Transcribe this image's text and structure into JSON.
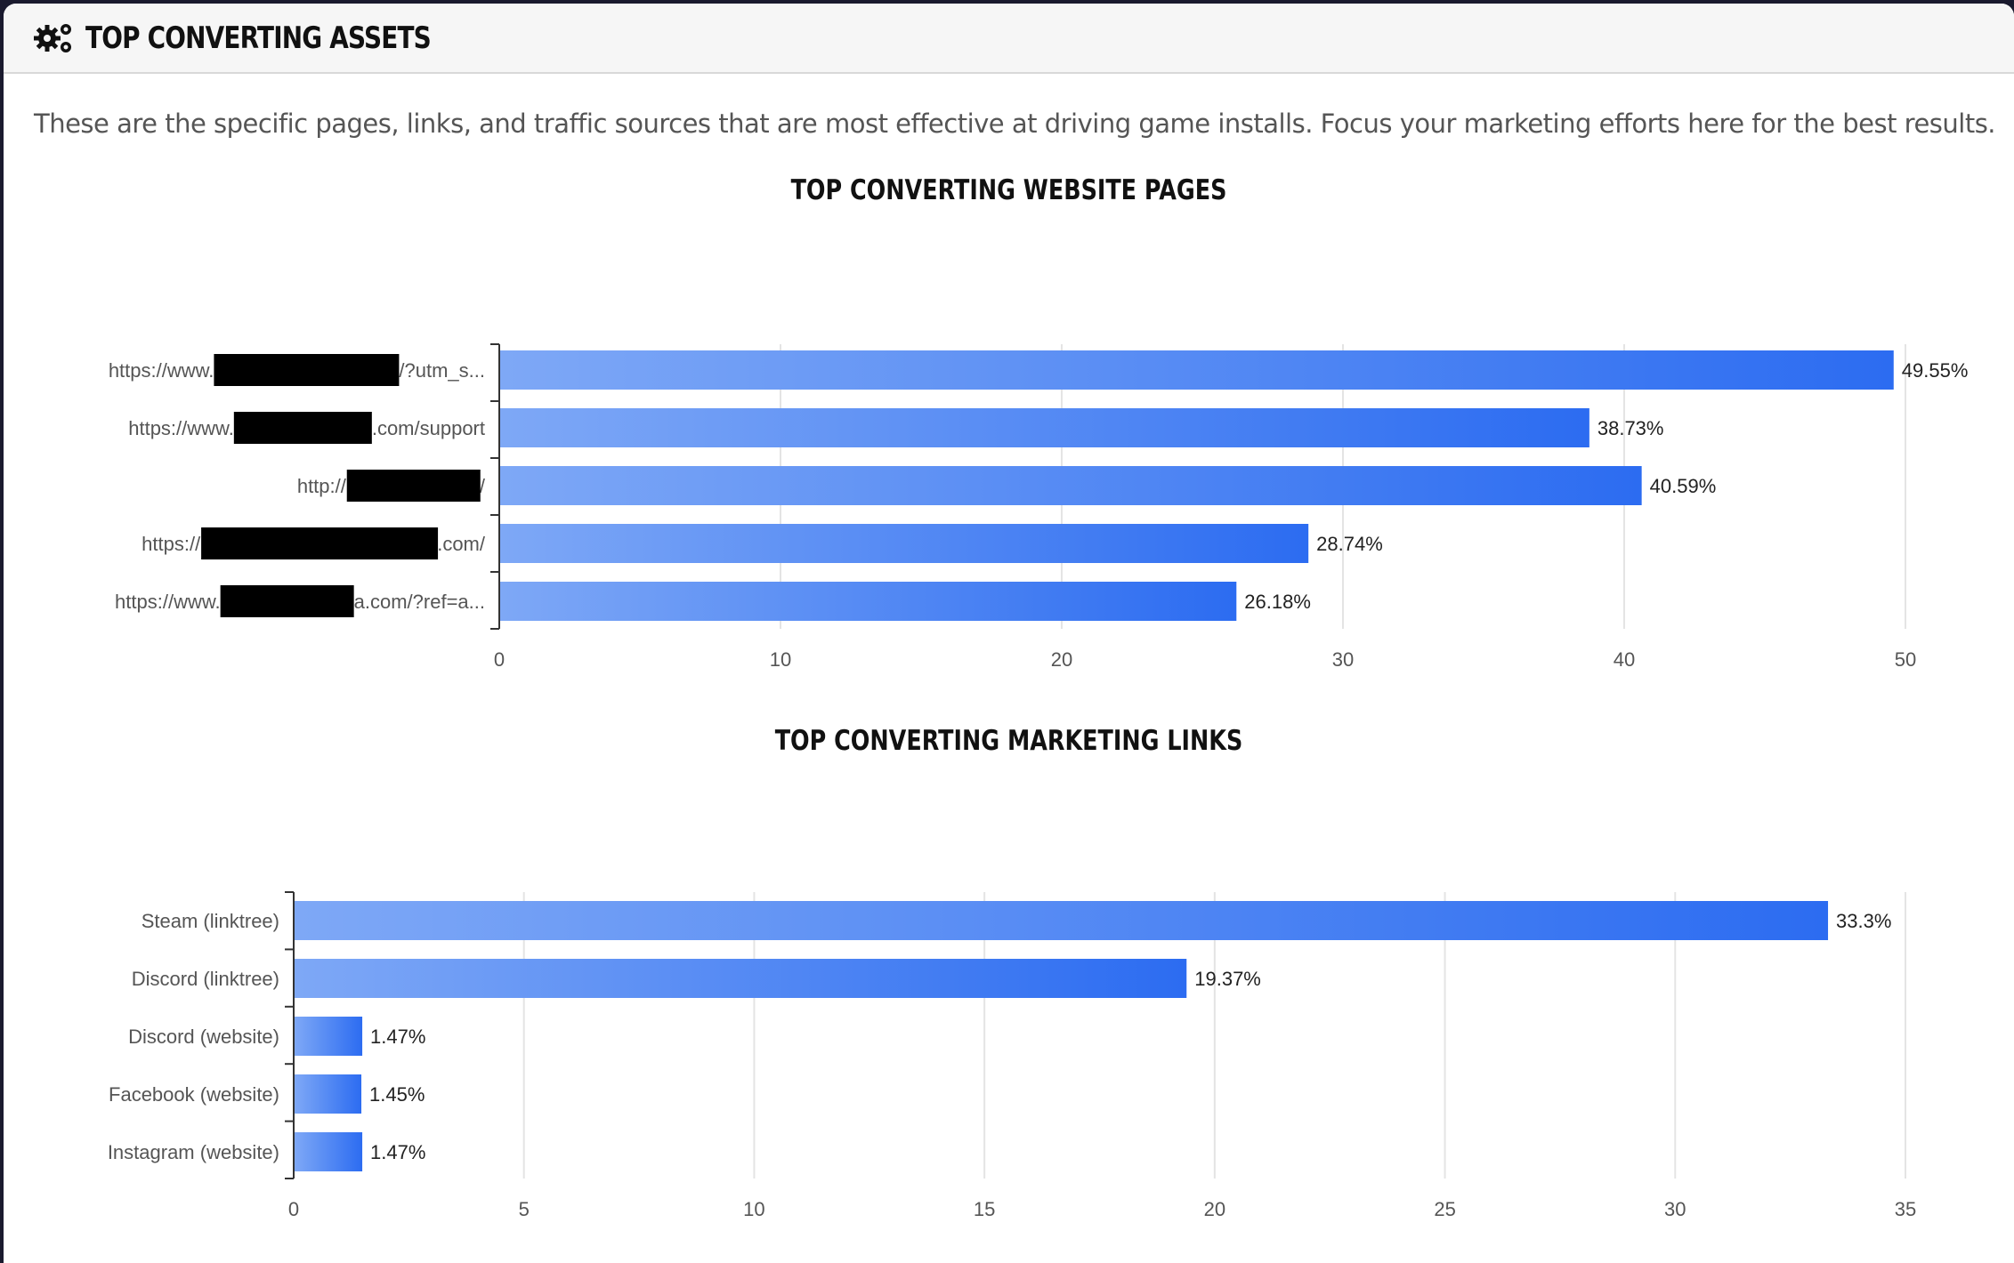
{
  "header": {
    "title": "TOP CONVERTING ASSETS",
    "icon": "gears-icon"
  },
  "description": "These are the specific pages, links, and traffic sources that are most effective at driving game installs. Focus your marketing efforts here for the best results.",
  "colors": {
    "bar_start": "#7ea8f6",
    "bar_end": "#2c6cf1"
  },
  "chart_data": [
    {
      "type": "bar",
      "orientation": "horizontal",
      "title": "TOP CONVERTING WEBSITE PAGES",
      "categories": [
        {
          "prefix": "https://www.",
          "suffix": "/?utm_s...",
          "redacted": true
        },
        {
          "prefix": "https://www.",
          "suffix": ".com/support",
          "redacted": true
        },
        {
          "prefix": "http://",
          "suffix": "/",
          "redacted": true
        },
        {
          "prefix": "https://",
          "suffix": ".com/",
          "redacted": true
        },
        {
          "prefix": "https://www.",
          "suffix": "a.com/?ref=a...",
          "redacted": true
        }
      ],
      "values": [
        49.55,
        38.73,
        40.59,
        28.74,
        26.18
      ],
      "data_labels": [
        "49.55%",
        "38.73%",
        "40.59%",
        "28.74%",
        "26.18%"
      ],
      "xlim": [
        0,
        50
      ],
      "xticks": [
        "0",
        "10",
        "20",
        "30",
        "40",
        "50"
      ],
      "grid": true
    },
    {
      "type": "bar",
      "orientation": "horizontal",
      "title": "TOP CONVERTING MARKETING LINKS",
      "categories": [
        "Steam (linktree)",
        "Discord (linktree)",
        "Discord (website)",
        "Facebook (website)",
        "Instagram (website)"
      ],
      "values": [
        33.3,
        19.37,
        1.47,
        1.45,
        1.47
      ],
      "data_labels": [
        "33.3%",
        "19.37%",
        "1.47%",
        "1.45%",
        "1.47%"
      ],
      "xlim": [
        0,
        35
      ],
      "xticks": [
        "0",
        "5",
        "10",
        "15",
        "20",
        "25",
        "30",
        "35"
      ],
      "grid": true
    }
  ]
}
